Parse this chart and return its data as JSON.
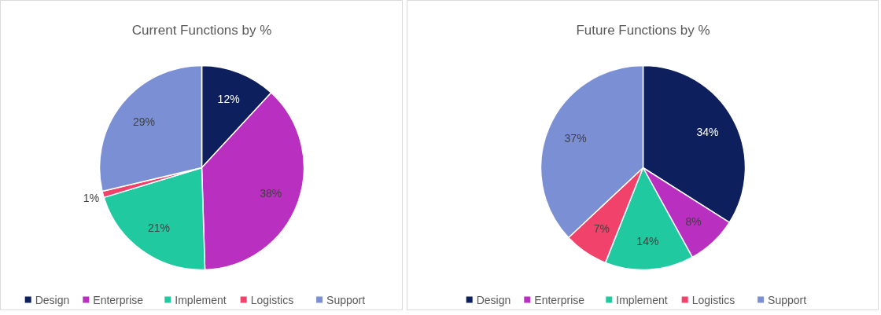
{
  "chart_data": [
    {
      "type": "pie",
      "title": "Current Functions by %",
      "categories": [
        "Design",
        "Enterprise",
        "Implement",
        "Logistics",
        "Support"
      ],
      "values": [
        12,
        38,
        21,
        1,
        29
      ],
      "value_labels": [
        "12%",
        "38%",
        "21%",
        "1%",
        "29%"
      ],
      "colors": [
        "#0d1f5c",
        "#b92fbf",
        "#21c9a0",
        "#f0426a",
        "#7b8fd4"
      ],
      "legend": "bottom"
    },
    {
      "type": "pie",
      "title": "Future Functions by %",
      "categories": [
        "Design",
        "Enterprise",
        "Implement",
        "Logistics",
        "Support"
      ],
      "values": [
        34,
        8,
        14,
        7,
        37
      ],
      "value_labels": [
        "34%",
        "8%",
        "14%",
        "7%",
        "37%"
      ],
      "colors": [
        "#0d1f5c",
        "#b92fbf",
        "#21c9a0",
        "#f0426a",
        "#7b8fd4"
      ],
      "legend": "bottom"
    }
  ]
}
